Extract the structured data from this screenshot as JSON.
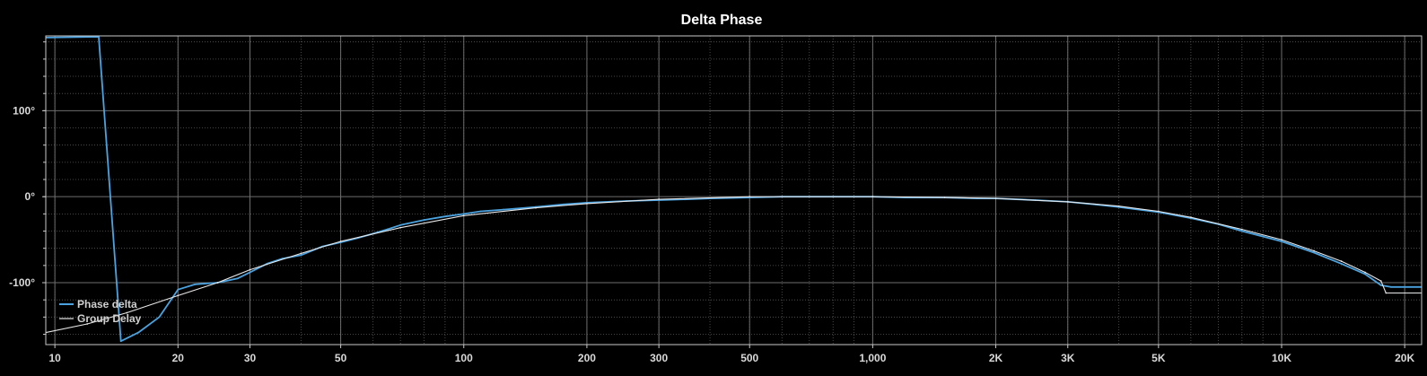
{
  "chart_data": {
    "type": "line",
    "title": "Delta Phase",
    "xlabel": "",
    "ylabel": "",
    "x_scale": "log",
    "xlim": [
      9.5,
      22000
    ],
    "ylim": [
      -172,
      187
    ],
    "xticks": [
      {
        "value": 10,
        "label": "10"
      },
      {
        "value": 20,
        "label": "20"
      },
      {
        "value": 30,
        "label": "30"
      },
      {
        "value": 50,
        "label": "50"
      },
      {
        "value": 100,
        "label": "100"
      },
      {
        "value": 200,
        "label": "200"
      },
      {
        "value": 300,
        "label": "300"
      },
      {
        "value": 500,
        "label": "500"
      },
      {
        "value": 1000,
        "label": "1,000"
      },
      {
        "value": 2000,
        "label": "2K"
      },
      {
        "value": 3000,
        "label": "3K"
      },
      {
        "value": 5000,
        "label": "5K"
      },
      {
        "value": 10000,
        "label": "10K"
      },
      {
        "value": 20000,
        "label": "20K"
      }
    ],
    "yticks": [
      {
        "value": 100,
        "label": "100°"
      },
      {
        "value": 0,
        "label": "0°"
      },
      {
        "value": -100,
        "label": "-100°"
      }
    ],
    "grid": true,
    "legend_position": "bottom-left",
    "colors": {
      "phase_delta": "#4aa3e0",
      "group_delay": "#e8e8e8",
      "grid": "#5a5a5a",
      "axis": "#c8c8c8"
    },
    "series": [
      {
        "name": "Phase delta",
        "x": [
          9.5,
          12.8,
          14.5,
          16,
          18,
          20,
          22,
          25,
          28,
          30,
          33,
          36,
          40,
          45,
          50,
          55,
          60,
          65,
          70,
          80,
          90,
          100,
          110,
          125,
          150,
          175,
          200,
          250,
          300,
          350,
          400,
          500,
          600,
          700,
          800,
          1000,
          1200,
          1500,
          1800,
          2000,
          2500,
          3000,
          3500,
          4000,
          5000,
          6000,
          7000,
          8000,
          10000,
          12000,
          14000,
          16000,
          17500,
          18500,
          22000
        ],
        "y": [
          185,
          186,
          -168,
          -158,
          -140,
          -108,
          -102,
          -100,
          -95,
          -88,
          -78,
          -72,
          -68,
          -58,
          -53,
          -48,
          -43,
          -38,
          -33,
          -27,
          -23,
          -20,
          -17,
          -15,
          -12,
          -9,
          -7,
          -5,
          -4,
          -3,
          -2,
          -1,
          0,
          0,
          0,
          0,
          -1,
          -1,
          -2,
          -2,
          -4,
          -6,
          -9,
          -12,
          -18,
          -25,
          -32,
          -40,
          -52,
          -65,
          -78,
          -90,
          -103,
          -105,
          -105
        ]
      },
      {
        "name": "Group Delay",
        "x": [
          9.5,
          12,
          15,
          20,
          25,
          30,
          40,
          50,
          70,
          100,
          150,
          200,
          300,
          500,
          1000,
          1500,
          2000,
          3000,
          4000,
          5000,
          6000,
          8000,
          10000,
          12000,
          14000,
          16000,
          17500,
          18000,
          22000
        ],
        "y": [
          -158,
          -148,
          -135,
          -115,
          -100,
          -85,
          -66,
          -52,
          -36,
          -22,
          -13,
          -8,
          -3,
          0,
          0,
          -1,
          -2,
          -6,
          -11,
          -17,
          -24,
          -38,
          -50,
          -63,
          -75,
          -88,
          -98,
          -112,
          -112
        ]
      }
    ]
  }
}
